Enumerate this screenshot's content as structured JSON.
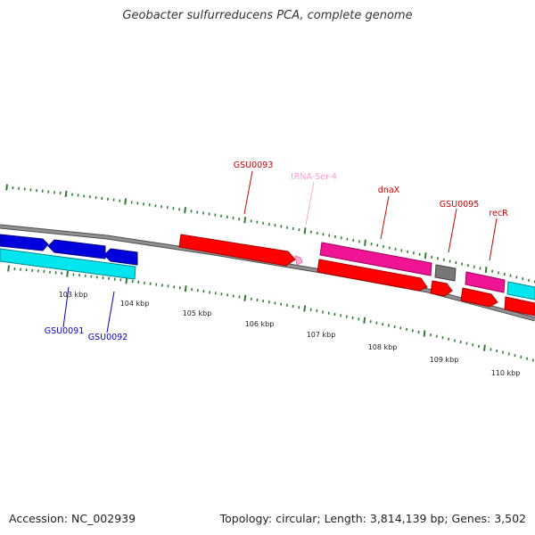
{
  "title": "Geobacter sulfurreducens PCA, complete genome",
  "footer": {
    "accession": "Accession: NC_002939",
    "summary": "Topology: circular; Length: 3,814,139 bp; Genes: 3,502"
  },
  "colors": {
    "backbone": "#808080",
    "ticks": "#2e7d32",
    "dark_blue_genes": "#0000dd",
    "cyan_genes": "#00e5ee",
    "red_genes": "#ff0000",
    "magenta_genes": "#ee1493",
    "gray_genes": "#777777",
    "trna": "#ffaad0"
  },
  "scale_labels": [
    "103 kbp",
    "104 kbp",
    "105 kbp",
    "106 kbp",
    "107 kbp",
    "108 kbp",
    "109 kbp",
    "110 kbp"
  ],
  "gene_labels": [
    {
      "text": "GSU0093",
      "color": "#cc0000"
    },
    {
      "text": "tRNA-Ser-4",
      "color": "#ff9ec8"
    },
    {
      "text": "dnaX",
      "color": "#cc0000"
    },
    {
      "text": "GSU0095",
      "color": "#cc0000"
    },
    {
      "text": "recR",
      "color": "#cc0000"
    },
    {
      "text": "GSU0091",
      "color": "#0000cc"
    },
    {
      "text": "GSU0092",
      "color": "#0000cc"
    }
  ]
}
